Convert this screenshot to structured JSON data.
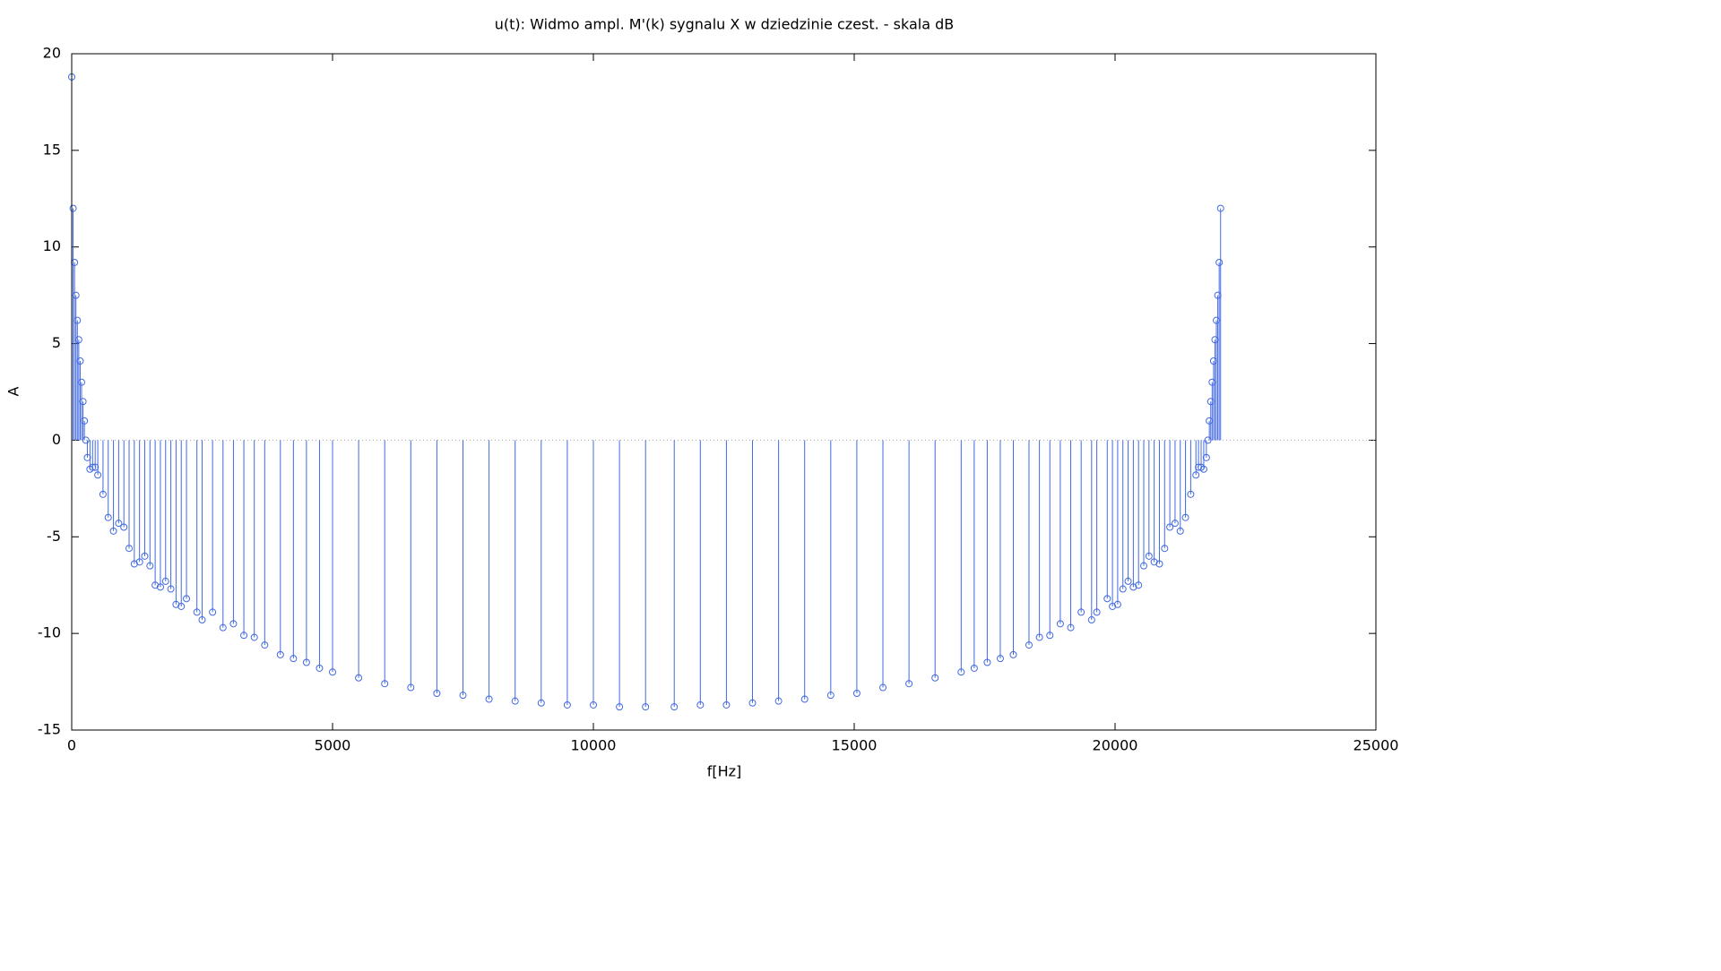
{
  "chart_data": {
    "type": "stem",
    "title": "u(t): Widmo ampl. M'(k) sygnalu X w dziedzinie czest. - skala dB",
    "x_label": "f[Hz]",
    "y_label": "A",
    "color": "#4169e1",
    "xlim": [
      0,
      25000
    ],
    "ylim": [
      -15,
      20
    ],
    "xticks": [
      0,
      5000,
      10000,
      15000,
      20000,
      25000
    ],
    "yticks": [
      -15,
      -10,
      -5,
      0,
      5,
      10,
      15,
      20
    ],
    "x": [
      0,
      27,
      54,
      81,
      108,
      135,
      162,
      189,
      216,
      243,
      270,
      300,
      350,
      400,
      450,
      500,
      600,
      700,
      800,
      900,
      1000,
      1100,
      1200,
      1300,
      1400,
      1500,
      1600,
      1700,
      1800,
      1900,
      2000,
      2100,
      2200,
      2400,
      2500,
      2700,
      2900,
      3100,
      3300,
      3500,
      3700,
      4000,
      4250,
      4500,
      4750,
      5000,
      5500,
      6000,
      6500,
      7000,
      7500,
      8000,
      8500,
      9000,
      9500,
      10000,
      10500,
      11000,
      11550,
      12050,
      12550,
      13050,
      13550,
      14050,
      14550,
      15050,
      15550,
      16050,
      16550,
      17050,
      17300,
      17550,
      17800,
      18050,
      18350,
      18550,
      18750,
      18950,
      19150,
      19350,
      19550,
      19650,
      19850,
      19950,
      20050,
      20150,
      20250,
      20350,
      20450,
      20550,
      20650,
      20750,
      20850,
      20950,
      21050,
      21150,
      21250,
      21350,
      21450,
      21550,
      21600,
      21650,
      21700,
      21750,
      21780,
      21807,
      21834,
      21861,
      21888,
      21915,
      21942,
      21969,
      21996,
      22023
    ],
    "values": [
      18.8,
      12.0,
      9.2,
      7.5,
      6.2,
      5.2,
      4.1,
      3.0,
      2.0,
      1.0,
      0.0,
      -0.9,
      -1.5,
      -1.4,
      -1.4,
      -1.8,
      -2.8,
      -4.0,
      -4.7,
      -4.3,
      -4.5,
      -5.6,
      -6.4,
      -6.3,
      -6.0,
      -6.5,
      -7.5,
      -7.6,
      -7.3,
      -7.7,
      -8.5,
      -8.6,
      -8.2,
      -8.9,
      -9.3,
      -8.9,
      -9.7,
      -9.5,
      -10.1,
      -10.2,
      -10.6,
      -11.1,
      -11.3,
      -11.5,
      -11.8,
      -12.0,
      -12.3,
      -12.6,
      -12.8,
      -13.1,
      -13.2,
      -13.4,
      -13.5,
      -13.6,
      -13.7,
      -13.7,
      -13.8,
      -13.8,
      -13.8,
      -13.7,
      -13.7,
      -13.6,
      -13.5,
      -13.4,
      -13.2,
      -13.1,
      -12.8,
      -12.6,
      -12.3,
      -12.0,
      -11.8,
      -11.5,
      -11.3,
      -11.1,
      -10.6,
      -10.2,
      -10.1,
      -9.5,
      -9.7,
      -8.9,
      -9.3,
      -8.9,
      -8.2,
      -8.6,
      -8.5,
      -7.7,
      -7.3,
      -7.6,
      -7.5,
      -6.5,
      -6.0,
      -6.3,
      -6.4,
      -5.6,
      -4.5,
      -4.3,
      -4.7,
      -4.0,
      -2.8,
      -1.8,
      -1.4,
      -1.4,
      -1.5,
      -0.9,
      0.0,
      1.0,
      2.0,
      3.0,
      4.1,
      5.2,
      6.2,
      7.5,
      9.2,
      12.0
    ]
  }
}
